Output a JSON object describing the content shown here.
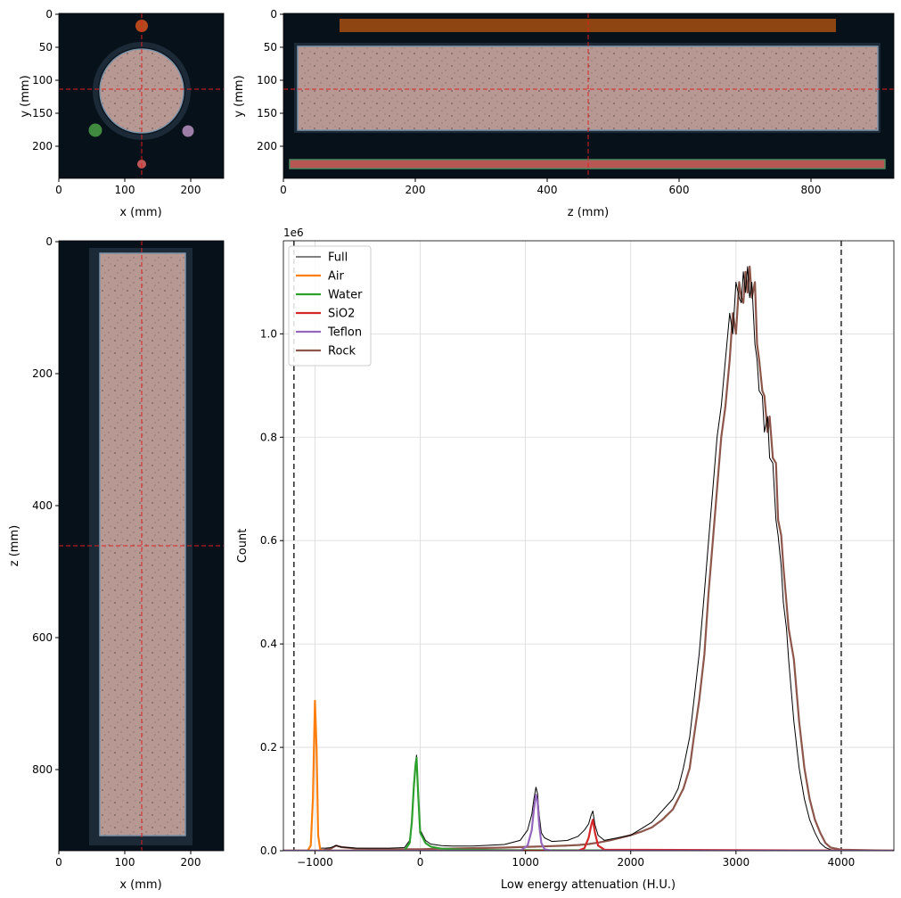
{
  "panels": {
    "xy": {
      "xlabel": "x (mm)",
      "ylabel": "y (mm)",
      "xticks": [
        "0",
        "100",
        "200"
      ],
      "yticks": [
        "0",
        "50",
        "100",
        "150",
        "200"
      ]
    },
    "zy": {
      "xlabel": "z (mm)",
      "ylabel": "y (mm)",
      "xticks": [
        "0",
        "200",
        "400",
        "600",
        "800"
      ],
      "yticks": [
        "0",
        "50",
        "100",
        "150",
        "200"
      ]
    },
    "xz": {
      "xlabel": "x (mm)",
      "ylabel": "z (mm)",
      "xticks": [
        "0",
        "100",
        "200"
      ],
      "yticks": [
        "0",
        "200",
        "400",
        "600",
        "800"
      ]
    }
  },
  "chart_data": {
    "type": "line",
    "xlabel": "Low energy attenuation (H.U.)",
    "ylabel": "Count",
    "offset_text": "1e6",
    "xlim": [
      -1300,
      4500
    ],
    "ylim": [
      0,
      1.18
    ],
    "xticks": [
      -1000,
      0,
      1000,
      2000,
      3000,
      4000
    ],
    "yticks": [
      0.0,
      0.2,
      0.4,
      0.6,
      0.8,
      1.0
    ],
    "grid": true,
    "legend_position": "upper-left",
    "vlines": [
      -1200,
      4000
    ],
    "series": [
      {
        "name": "Full",
        "color": "#000000",
        "width": 1,
        "x": [
          -1300,
          -1070,
          -1040,
          -1020,
          -1000,
          -985,
          -970,
          -950,
          -900,
          -850,
          -800,
          -750,
          -600,
          -300,
          -150,
          -100,
          -80,
          -60,
          -45,
          -35,
          -20,
          0,
          50,
          100,
          200,
          300,
          500,
          800,
          950,
          1020,
          1060,
          1080,
          1100,
          1115,
          1130,
          1150,
          1180,
          1250,
          1400,
          1500,
          1560,
          1600,
          1625,
          1640,
          1660,
          1690,
          1750,
          2000,
          2200,
          2400,
          2450,
          2500,
          2560,
          2600,
          2650,
          2700,
          2740,
          2780,
          2820,
          2860,
          2900,
          2940,
          2970,
          3000,
          3030,
          3050,
          3070,
          3090,
          3110,
          3130,
          3150,
          3180,
          3200,
          3220,
          3250,
          3270,
          3300,
          3320,
          3350,
          3380,
          3400,
          3430,
          3450,
          3480,
          3500,
          3550,
          3600,
          3650,
          3700,
          3750,
          3800,
          3850,
          3900,
          4000,
          4500
        ],
        "y": [
          0,
          0,
          0.01,
          0.1,
          0.29,
          0.2,
          0.03,
          0.005,
          0.005,
          0.006,
          0.01,
          0.007,
          0.005,
          0.005,
          0.006,
          0.02,
          0.06,
          0.13,
          0.17,
          0.185,
          0.11,
          0.04,
          0.02,
          0.013,
          0.01,
          0.009,
          0.009,
          0.012,
          0.02,
          0.04,
          0.07,
          0.1,
          0.123,
          0.11,
          0.07,
          0.035,
          0.025,
          0.018,
          0.02,
          0.028,
          0.04,
          0.052,
          0.07,
          0.077,
          0.05,
          0.03,
          0.02,
          0.03,
          0.055,
          0.1,
          0.12,
          0.16,
          0.22,
          0.29,
          0.38,
          0.5,
          0.6,
          0.7,
          0.8,
          0.86,
          0.95,
          1.04,
          1.0,
          1.1,
          1.07,
          1.06,
          1.12,
          1.08,
          1.13,
          1.07,
          1.1,
          0.98,
          0.95,
          0.89,
          0.88,
          0.81,
          0.84,
          0.76,
          0.75,
          0.64,
          0.61,
          0.55,
          0.48,
          0.43,
          0.37,
          0.25,
          0.16,
          0.1,
          0.06,
          0.035,
          0.015,
          0.006,
          0.002,
          0,
          0
        ]
      },
      {
        "name": "Air",
        "color": "#ff7f0e",
        "width": 2.2,
        "x": [
          -1300,
          -1070,
          -1040,
          -1020,
          -1000,
          -985,
          -970,
          -950,
          -900,
          4500
        ],
        "y": [
          0,
          0,
          0.01,
          0.1,
          0.29,
          0.2,
          0.03,
          0.002,
          0,
          0
        ]
      },
      {
        "name": "Water",
        "color": "#2ca02c",
        "width": 2.2,
        "x": [
          -1300,
          -150,
          -100,
          -80,
          -60,
          -45,
          -35,
          -20,
          0,
          50,
          100,
          200,
          400,
          800,
          4500
        ],
        "y": [
          0,
          0,
          0.015,
          0.055,
          0.125,
          0.165,
          0.18,
          0.11,
          0.035,
          0.015,
          0.008,
          0.004,
          0.002,
          0.001,
          0
        ]
      },
      {
        "name": "SiO2",
        "color": "#d62728",
        "width": 2.2,
        "x": [
          -1300,
          1500,
          1560,
          1600,
          1625,
          1640,
          1660,
          1690,
          1750,
          4500
        ],
        "y": [
          0,
          0,
          0.005,
          0.025,
          0.05,
          0.06,
          0.035,
          0.01,
          0.002,
          0
        ]
      },
      {
        "name": "Teflon",
        "color": "#9467bd",
        "width": 2.2,
        "x": [
          -1300,
          950,
          1020,
          1060,
          1080,
          1100,
          1115,
          1130,
          1150,
          1180,
          1250,
          4500
        ],
        "y": [
          0,
          0,
          0.01,
          0.04,
          0.08,
          0.108,
          0.095,
          0.05,
          0.015,
          0.003,
          0,
          0
        ]
      },
      {
        "name": "Rock",
        "color": "#8c564b",
        "width": 2.2,
        "x": [
          -1300,
          -950,
          -850,
          -800,
          -750,
          -600,
          -300,
          0,
          200,
          500,
          800,
          950,
          1100,
          1250,
          1400,
          1500,
          1600,
          1700,
          1800,
          1900,
          2000,
          2100,
          2200,
          2300,
          2400,
          2450,
          2500,
          2560,
          2600,
          2650,
          2700,
          2740,
          2780,
          2820,
          2860,
          2900,
          2940,
          2970,
          3000,
          3030,
          3050,
          3070,
          3090,
          3110,
          3130,
          3150,
          3180,
          3200,
          3220,
          3250,
          3270,
          3300,
          3320,
          3350,
          3380,
          3400,
          3430,
          3450,
          3480,
          3500,
          3550,
          3600,
          3650,
          3700,
          3750,
          3800,
          3850,
          3900,
          4000,
          4500
        ],
        "y": [
          0,
          0,
          0.004,
          0.01,
          0.007,
          0.004,
          0.003,
          0.003,
          0.004,
          0.005,
          0.006,
          0.007,
          0.008,
          0.009,
          0.01,
          0.011,
          0.013,
          0.016,
          0.02,
          0.025,
          0.03,
          0.037,
          0.045,
          0.06,
          0.08,
          0.1,
          0.12,
          0.16,
          0.22,
          0.29,
          0.38,
          0.5,
          0.6,
          0.7,
          0.8,
          0.86,
          0.95,
          1.04,
          1.0,
          1.1,
          1.07,
          1.06,
          1.12,
          1.08,
          1.13,
          1.07,
          1.1,
          0.98,
          0.95,
          0.89,
          0.88,
          0.81,
          0.84,
          0.76,
          0.75,
          0.64,
          0.61,
          0.55,
          0.48,
          0.43,
          0.37,
          0.25,
          0.16,
          0.1,
          0.06,
          0.035,
          0.015,
          0.006,
          0.002,
          0
        ]
      }
    ]
  }
}
